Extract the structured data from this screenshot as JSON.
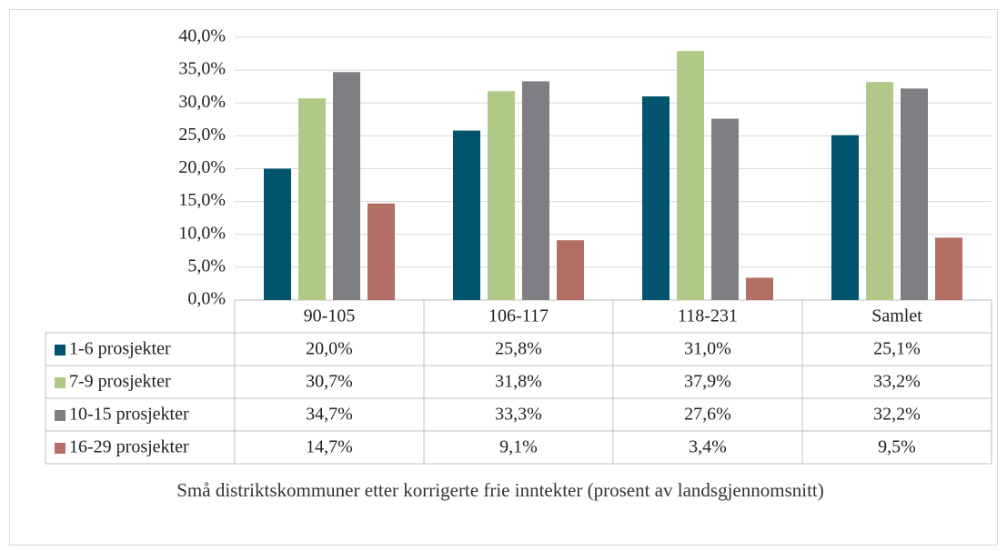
{
  "chart_data": {
    "type": "bar",
    "x_label": "Små distriktskommuner etter  korrigerte frie inntekter (prosent av landsgjennomsnitt)",
    "categories": [
      "90-105",
      "106-117",
      "118-231",
      "Samlet"
    ],
    "series": [
      {
        "name": "1-6 prosjekter",
        "color": "#00546e",
        "values": [
          20.0,
          25.8,
          31.0,
          25.1
        ],
        "value_labels": [
          "20,0%",
          "25,8%",
          "31,0%",
          "25,1%"
        ]
      },
      {
        "name": "7-9 prosjekter",
        "color": "#b0c888",
        "values": [
          30.7,
          31.8,
          37.9,
          33.2
        ],
        "value_labels": [
          "30,7%",
          "31,8%",
          "37,9%",
          "33,2%"
        ]
      },
      {
        "name": "10-15 prosjekter",
        "color": "#7f7e83",
        "values": [
          34.7,
          33.3,
          27.6,
          32.2
        ],
        "value_labels": [
          "34,7%",
          "33,3%",
          "27,6%",
          "32,2%"
        ]
      },
      {
        "name": "16-29 prosjekter",
        "color": "#b36f64",
        "values": [
          14.7,
          9.1,
          3.4,
          9.5
        ],
        "value_labels": [
          "14,7%",
          "9,1%",
          "3,4%",
          "9,5%"
        ]
      }
    ],
    "ylim": [
      0,
      40
    ],
    "yticks": [
      {
        "value": 0,
        "label": "0,0%"
      },
      {
        "value": 5,
        "label": "5,0%"
      },
      {
        "value": 10,
        "label": "10,0%"
      },
      {
        "value": 15,
        "label": "15,0%"
      },
      {
        "value": 20,
        "label": "20,0%"
      },
      {
        "value": 25,
        "label": "25,0%"
      },
      {
        "value": 30,
        "label": "30,0%"
      },
      {
        "value": 35,
        "label": "35,0%"
      },
      {
        "value": 40,
        "label": "40,0%"
      }
    ],
    "grid": true
  }
}
